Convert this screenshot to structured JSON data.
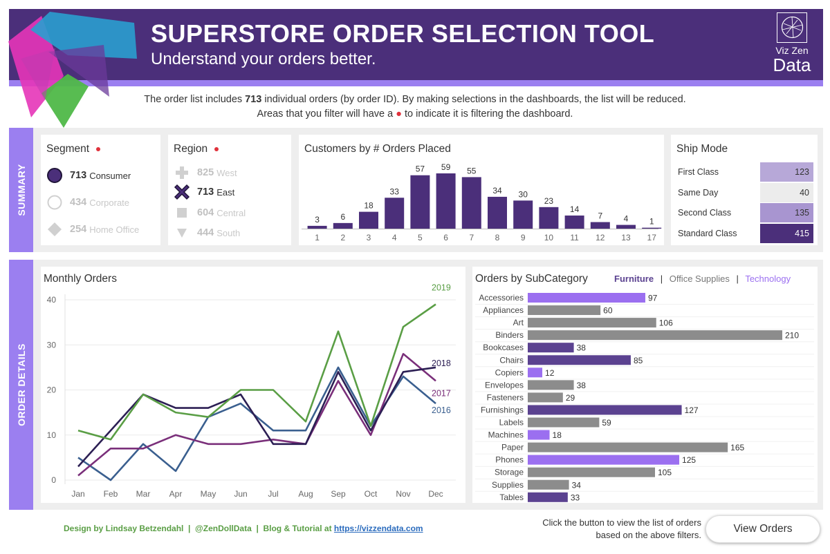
{
  "header": {
    "title": "SUPERSTORE ORDER SELECTION TOOL",
    "subtitle": "Understand your orders better.",
    "brand_small": "Viz Zen",
    "brand_big": "Data"
  },
  "intro": {
    "line1_before": "The order list includes ",
    "line1_count": "713",
    "line1_after": " individual orders (by order ID). By making selections in the dashboards, the list will be reduced.",
    "line2_before": "Areas that you filter will have a ",
    "line2_dot": "●",
    "line2_after": " to indicate it is filtering the dashboard."
  },
  "bands": {
    "summary": "SUMMARY",
    "details": "ORDER DETAILS"
  },
  "segment": {
    "title": "Segment",
    "items": [
      {
        "count": "713",
        "label": "Consumer",
        "selected": true
      },
      {
        "count": "434",
        "label": "Corporate",
        "selected": false
      },
      {
        "count": "254",
        "label": "Home Office",
        "selected": false
      }
    ]
  },
  "region": {
    "title": "Region",
    "items": [
      {
        "count": "825",
        "label": "West",
        "selected": false
      },
      {
        "count": "713",
        "label": "East",
        "selected": true
      },
      {
        "count": "604",
        "label": "Central",
        "selected": false
      },
      {
        "count": "444",
        "label": "South",
        "selected": false
      }
    ]
  },
  "ship_mode": {
    "title": "Ship Mode",
    "rows": [
      {
        "label": "First Class",
        "value": "123",
        "color": "#b7a8d8"
      },
      {
        "label": "Same Day",
        "value": "40",
        "color": "#ececec"
      },
      {
        "label": "Second Class",
        "value": "135",
        "color": "#a895d0"
      },
      {
        "label": "Standard Class",
        "value": "415",
        "color": "#4b2f7a"
      }
    ]
  },
  "chart_data": [
    {
      "type": "bar",
      "title": "Customers by # Orders Placed",
      "categories": [
        "1",
        "2",
        "3",
        "4",
        "5",
        "6",
        "7",
        "8",
        "9",
        "10",
        "11",
        "12",
        "13",
        "17"
      ],
      "values": [
        3,
        6,
        18,
        33,
        57,
        59,
        55,
        34,
        30,
        23,
        14,
        7,
        4,
        1
      ],
      "color": "#4b2f7a"
    },
    {
      "type": "line",
      "title": "Monthly Orders",
      "x": [
        "Jan",
        "Feb",
        "Mar",
        "Apr",
        "May",
        "Jun",
        "Jul",
        "Aug",
        "Sep",
        "Oct",
        "Nov",
        "Dec"
      ],
      "ylim": [
        0,
        40
      ],
      "yticks": [
        0,
        10,
        20,
        30,
        40
      ],
      "grid": true,
      "series": [
        {
          "name": "2016",
          "color": "#3a5f8f",
          "values": [
            5,
            0,
            8,
            2,
            14,
            17,
            11,
            11,
            25,
            12,
            23,
            17
          ]
        },
        {
          "name": "2017",
          "color": "#7a2f7a",
          "values": [
            1,
            7,
            7,
            10,
            8,
            8,
            9,
            8,
            22,
            10,
            28,
            22
          ]
        },
        {
          "name": "2018",
          "color": "#2c1f54",
          "values": [
            3,
            11,
            19,
            16,
            16,
            19,
            8,
            8,
            24,
            11,
            24,
            25
          ]
        },
        {
          "name": "2019",
          "color": "#5a9e45",
          "values": [
            11,
            9,
            19,
            15,
            14,
            20,
            20,
            13,
            33,
            12,
            34,
            39
          ]
        }
      ]
    },
    {
      "type": "bar",
      "orientation": "horizontal",
      "title": "Orders by SubCategory",
      "categories": [
        "Accessories",
        "Appliances",
        "Art",
        "Binders",
        "Bookcases",
        "Chairs",
        "Copiers",
        "Envelopes",
        "Fasteners",
        "Furnishings",
        "Labels",
        "Machines",
        "Paper",
        "Phones",
        "Storage",
        "Supplies",
        "Tables"
      ],
      "values": [
        97,
        60,
        106,
        210,
        38,
        85,
        12,
        38,
        29,
        127,
        59,
        18,
        165,
        125,
        105,
        34,
        33
      ],
      "group": [
        "Technology",
        "Office Supplies",
        "Office Supplies",
        "Office Supplies",
        "Furniture",
        "Furniture",
        "Technology",
        "Office Supplies",
        "Office Supplies",
        "Furniture",
        "Office Supplies",
        "Technology",
        "Office Supplies",
        "Technology",
        "Office Supplies",
        "Office Supplies",
        "Furniture"
      ],
      "legend": [
        {
          "name": "Furniture",
          "color": "#5b4290"
        },
        {
          "name": "Office Supplies",
          "color": "#8c8c8c"
        },
        {
          "name": "Technology",
          "color": "#9b6ff0"
        }
      ]
    }
  ],
  "footer": {
    "credit": "Design by Lindsay Betzendahl  |  @ZenDollData  |  Blog & Tutorial at ",
    "link": "https://vizzendata.com",
    "note_line1": "Click the button to view the list of orders",
    "note_line2": "based on the above filters.",
    "button": "View Orders"
  }
}
